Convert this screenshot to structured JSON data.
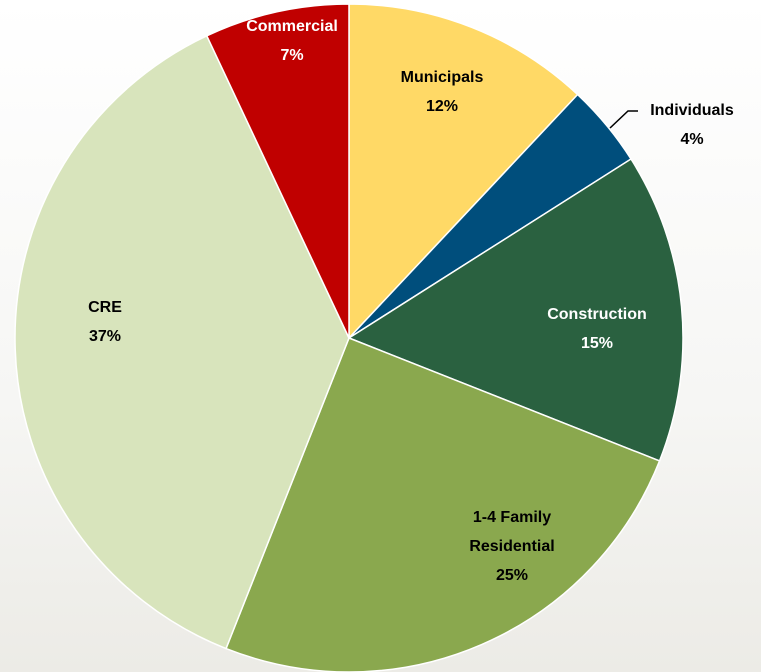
{
  "chart_data": {
    "type": "pie",
    "categories": [
      "Municipals",
      "Individuals",
      "Construction",
      "1-4 Family Residential",
      "CRE",
      "Commercial"
    ],
    "values": [
      12,
      4,
      15,
      25,
      37,
      7
    ],
    "value_labels": [
      "12%",
      "4%",
      "15%",
      "25%",
      "37%",
      "7%"
    ],
    "colors": [
      "#ffd966",
      "#004e7c",
      "#2a6140",
      "#8aa84e",
      "#d8e4bc",
      "#c00000"
    ]
  }
}
